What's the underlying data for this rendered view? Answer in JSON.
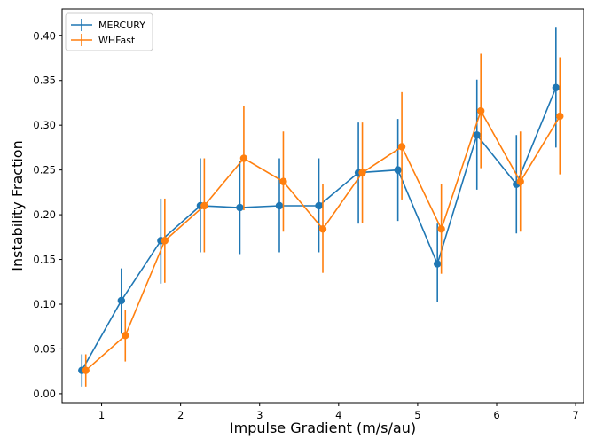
{
  "chart_data": {
    "type": "line",
    "title": "",
    "xlabel": "Impulse Gradient (m/s/au)",
    "ylabel": "Instability Fraction",
    "xlim": [
      0.5,
      7.1
    ],
    "ylim": [
      -0.01,
      0.43
    ],
    "xticks": [
      1,
      2,
      3,
      4,
      5,
      6,
      7
    ],
    "yticks": [
      "0.00",
      "0.05",
      "0.10",
      "0.15",
      "0.20",
      "0.25",
      "0.30",
      "0.35",
      "0.40"
    ],
    "legend_position": "top-left",
    "series": [
      {
        "name": "MERCURY",
        "color": "#1f77b4",
        "x": [
          0.75,
          1.25,
          1.75,
          2.25,
          2.75,
          3.25,
          3.75,
          4.25,
          4.75,
          5.25,
          5.75,
          6.25,
          6.75
        ],
        "y": [
          0.026,
          0.104,
          0.171,
          0.21,
          0.208,
          0.21,
          0.21,
          0.247,
          0.25,
          0.145,
          0.289,
          0.234,
          0.342
        ],
        "err_low": [
          0.018,
          0.037,
          0.048,
          0.052,
          0.052,
          0.052,
          0.052,
          0.057,
          0.057,
          0.043,
          0.061,
          0.055,
          0.067
        ],
        "err_high": [
          0.018,
          0.036,
          0.047,
          0.053,
          0.052,
          0.053,
          0.053,
          0.056,
          0.057,
          0.045,
          0.062,
          0.055,
          0.067
        ]
      },
      {
        "name": "WHFast",
        "color": "#ff7f0e",
        "x": [
          0.8,
          1.3,
          1.8,
          2.3,
          2.8,
          3.3,
          3.8,
          4.3,
          4.8,
          5.3,
          5.8,
          6.3,
          6.8
        ],
        "y": [
          0.026,
          0.065,
          0.171,
          0.21,
          0.263,
          0.237,
          0.184,
          0.247,
          0.276,
          0.184,
          0.316,
          0.237,
          0.31
        ],
        "err_low": [
          0.018,
          0.029,
          0.047,
          0.052,
          0.058,
          0.056,
          0.049,
          0.056,
          0.059,
          0.05,
          0.064,
          0.056,
          0.065
        ],
        "err_high": [
          0.018,
          0.029,
          0.047,
          0.053,
          0.059,
          0.056,
          0.05,
          0.056,
          0.061,
          0.05,
          0.064,
          0.056,
          0.066
        ]
      }
    ]
  }
}
